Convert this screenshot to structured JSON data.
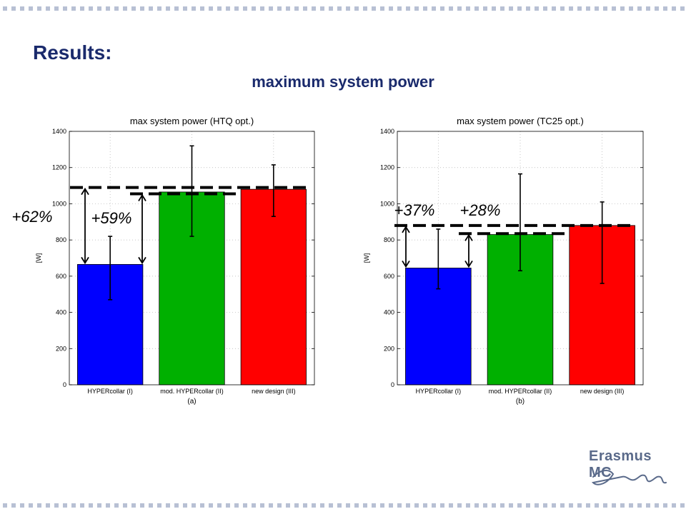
{
  "slide": {
    "title": "Results:",
    "subtitle": "maximum system power",
    "logo_text": "Erasmus MC"
  },
  "colors": {
    "title": "#1a2a6c",
    "bar_blue": "#0000ff",
    "bar_green": "#00b000",
    "bar_red": "#ff0000"
  },
  "chart_data": [
    {
      "type": "bar",
      "title": "max system power (HTQ opt.)",
      "ylabel": "[W]",
      "xlabel": "(a)",
      "categories": [
        "HYPERcollar (I)",
        "mod. HYPERcollar (II)",
        "new design (III)"
      ],
      "values": [
        665,
        1065,
        1080
      ],
      "error_low": [
        470,
        820,
        930
      ],
      "error_high": [
        820,
        1320,
        1215
      ],
      "ylim": [
        0,
        1400
      ],
      "yticks": [
        0,
        200,
        400,
        600,
        800,
        1000,
        1200,
        1400
      ],
      "grid": true,
      "bar_colors": [
        "#0000ff",
        "#00b000",
        "#ff0000"
      ],
      "reference_lines": [
        1090,
        1055
      ],
      "annotations": [
        {
          "text": "+62%",
          "from": 665,
          "to": 1090
        },
        {
          "text": "+59%",
          "from": 665,
          "to": 1055
        }
      ]
    },
    {
      "type": "bar",
      "title": "max system power (TC25 opt.)",
      "ylabel": "[W]",
      "xlabel": "(b)",
      "categories": [
        "HYPERcollar (I)",
        "mod. HYPERcollar (II)",
        "new design (III)"
      ],
      "values": [
        645,
        830,
        880
      ],
      "error_low": [
        530,
        630,
        560
      ],
      "error_high": [
        860,
        1165,
        1010
      ],
      "ylim": [
        0,
        1400
      ],
      "yticks": [
        0,
        200,
        400,
        600,
        800,
        1000,
        1200,
        1400
      ],
      "grid": true,
      "bar_colors": [
        "#0000ff",
        "#00b000",
        "#ff0000"
      ],
      "reference_lines": [
        880,
        835
      ],
      "annotations": [
        {
          "text": "+37%",
          "from": 645,
          "to": 880
        },
        {
          "text": "+28%",
          "from": 645,
          "to": 835
        }
      ]
    }
  ]
}
